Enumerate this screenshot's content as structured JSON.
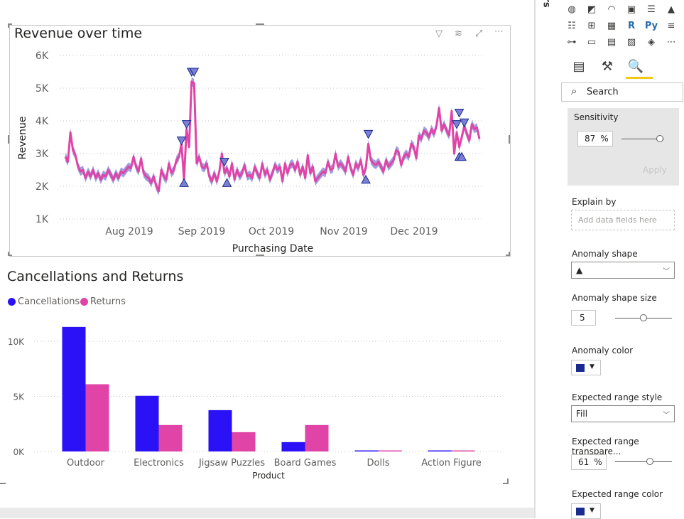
{
  "visual1": {
    "title": "Revenue over time",
    "chart_data": {
      "type": "line",
      "xlabel": "Purchasing Date",
      "ylabel": "Revenue",
      "x_ticks": [
        "Aug 2019",
        "Sep 2019",
        "Oct 2019",
        "Nov 2019",
        "Dec 2019"
      ],
      "y_ticks": [
        "6K",
        "5K",
        "4K",
        "3K",
        "2K",
        "1K"
      ],
      "ylim": [
        1000,
        6000
      ],
      "series": [
        {
          "values": [
            2900,
            2750,
            3650,
            3100,
            2950,
            2600,
            2450,
            2500,
            2250,
            2450,
            2300,
            2500,
            2250,
            2400,
            2200,
            2350,
            2300,
            2500,
            2350,
            2200,
            2400,
            2250,
            2450,
            2400,
            2500,
            2600,
            2550,
            2900,
            2600,
            2450,
            2850,
            2400,
            2300,
            2250,
            2100,
            2300,
            2000,
            1850,
            2500,
            2300,
            2200,
            2700,
            2400,
            2500,
            2800,
            2900,
            3300,
            2200,
            3750,
            3200,
            5200,
            5150,
            2700,
            2900,
            2600,
            2550,
            2700,
            2300,
            2150,
            2400,
            2150,
            2450,
            3000,
            2400,
            2550,
            2300,
            2700,
            2200,
            2500,
            2300,
            2400,
            2650,
            2300,
            2350,
            2250,
            2600,
            2400,
            2250,
            2700,
            2350,
            2500,
            2200,
            2400,
            2650,
            2500,
            2600,
            2150,
            2700,
            2400,
            2650,
            2700,
            2500,
            2750,
            2350,
            2600,
            2250,
            2950,
            2400,
            2600,
            2150,
            2250,
            2350,
            2450,
            2400,
            2750,
            2500,
            2550,
            3000,
            2600,
            2700,
            2600,
            2450,
            2900,
            2550,
            2350,
            2700,
            2550,
            2800,
            2350,
            2550,
            3300,
            2800,
            2700,
            2650,
            2750,
            2600,
            2450,
            2800,
            2600,
            2700,
            2800,
            3100,
            3050,
            2650,
            2900,
            3000,
            2900,
            3300,
            3200,
            2850,
            3550,
            3450,
            3700,
            3650,
            3500,
            3750,
            3600,
            3850,
            4400,
            3700,
            3900,
            3700,
            3550,
            4300,
            3000,
            3650,
            3200,
            3500,
            3850,
            3600,
            3400,
            3900,
            3750,
            3800,
            3450
          ]
        }
      ],
      "anomalies_down": [
        {
          "x": 46,
          "y": 3400
        },
        {
          "x": 48,
          "y": 3900
        },
        {
          "x": 50,
          "y": 5500
        },
        {
          "x": 51,
          "y": 5500
        },
        {
          "x": 63,
          "y": 2750
        },
        {
          "x": 120,
          "y": 3600
        },
        {
          "x": 155,
          "y": 3900
        },
        {
          "x": 156,
          "y": 4250
        },
        {
          "x": 158,
          "y": 3950
        }
      ],
      "anomalies_up": [
        {
          "x": 47,
          "y": 2100
        },
        {
          "x": 64,
          "y": 2100
        },
        {
          "x": 119,
          "y": 2200
        },
        {
          "x": 156,
          "y": 2900
        },
        {
          "x": 157,
          "y": 2900
        }
      ]
    }
  },
  "visual2": {
    "title": "Cancellations and Returns",
    "legend": [
      {
        "name": "Cancellations",
        "color": "#2b11f5"
      },
      {
        "name": "Returns",
        "color": "#e044a7"
      }
    ],
    "chart_data": {
      "type": "bar",
      "xlabel": "Product",
      "ylabel": "",
      "categories": [
        "Outdoor",
        "Electronics",
        "Jigsaw Puzzles",
        "Board Games",
        "Dolls",
        "Action Figure"
      ],
      "y_ticks": [
        "10K",
        "5K",
        "0K"
      ],
      "ylim": [
        0,
        10000
      ],
      "series": [
        {
          "name": "Cancellations",
          "values": [
            11300,
            5050,
            3750,
            850,
            60,
            40
          ]
        },
        {
          "name": "Returns",
          "values": [
            6100,
            2400,
            1750,
            2400,
            40,
            40
          ]
        }
      ]
    }
  },
  "pane": {
    "side_tab_letters": "rs",
    "search_placeholder": "Search",
    "sensitivity": {
      "label": "Sensitivity",
      "value": "87",
      "unit": "%",
      "apply": "Apply",
      "slider_fraction": 0.87
    },
    "explain_by": {
      "label": "Explain by",
      "placeholder": "Add data fields here"
    },
    "anomaly_shape": {
      "label": "Anomaly shape",
      "value": "▲"
    },
    "anomaly_shape_size": {
      "label": "Anomaly shape size",
      "value": "5",
      "slider_fraction": 0.5
    },
    "anomaly_color": {
      "label": "Anomaly color",
      "color": "#1a2b8f"
    },
    "expected_range_style": {
      "label": "Expected range style",
      "value": "Fill"
    },
    "expected_range_transparency": {
      "label": "Expected range transpare...",
      "value": "61",
      "unit": "%",
      "slider_fraction": 0.61
    },
    "expected_range_color": {
      "label": "Expected range color",
      "color": "#1a2b8f"
    },
    "viz_icons": [
      "globe-map-icon",
      "filled-map-icon",
      "gauge-icon",
      "card-icon",
      "multi-row-card-icon",
      "kpi-icon",
      "slicer-icon",
      "table-icon",
      "matrix-icon",
      "r-visual-icon",
      "python-visual-icon",
      "key-influencers-icon",
      "decomposition-tree-icon",
      "qa-icon",
      "narrative-icon",
      "paginated-icon",
      "power-apps-icon",
      "more-visuals-icon"
    ],
    "viz_glyphs": [
      "◍",
      "◩",
      "◠",
      "▣",
      "☰",
      "▲",
      "☷",
      "⊞",
      "▦",
      "R",
      "Py",
      "≡",
      "⊶",
      "▭",
      "▤",
      "▨",
      "◈",
      "⋯"
    ],
    "tabs": [
      "fields-tab-icon",
      "format-tab-icon",
      "analytics-tab-icon"
    ],
    "tab_glyphs": [
      "▤",
      "⚒",
      "🔍"
    ]
  }
}
